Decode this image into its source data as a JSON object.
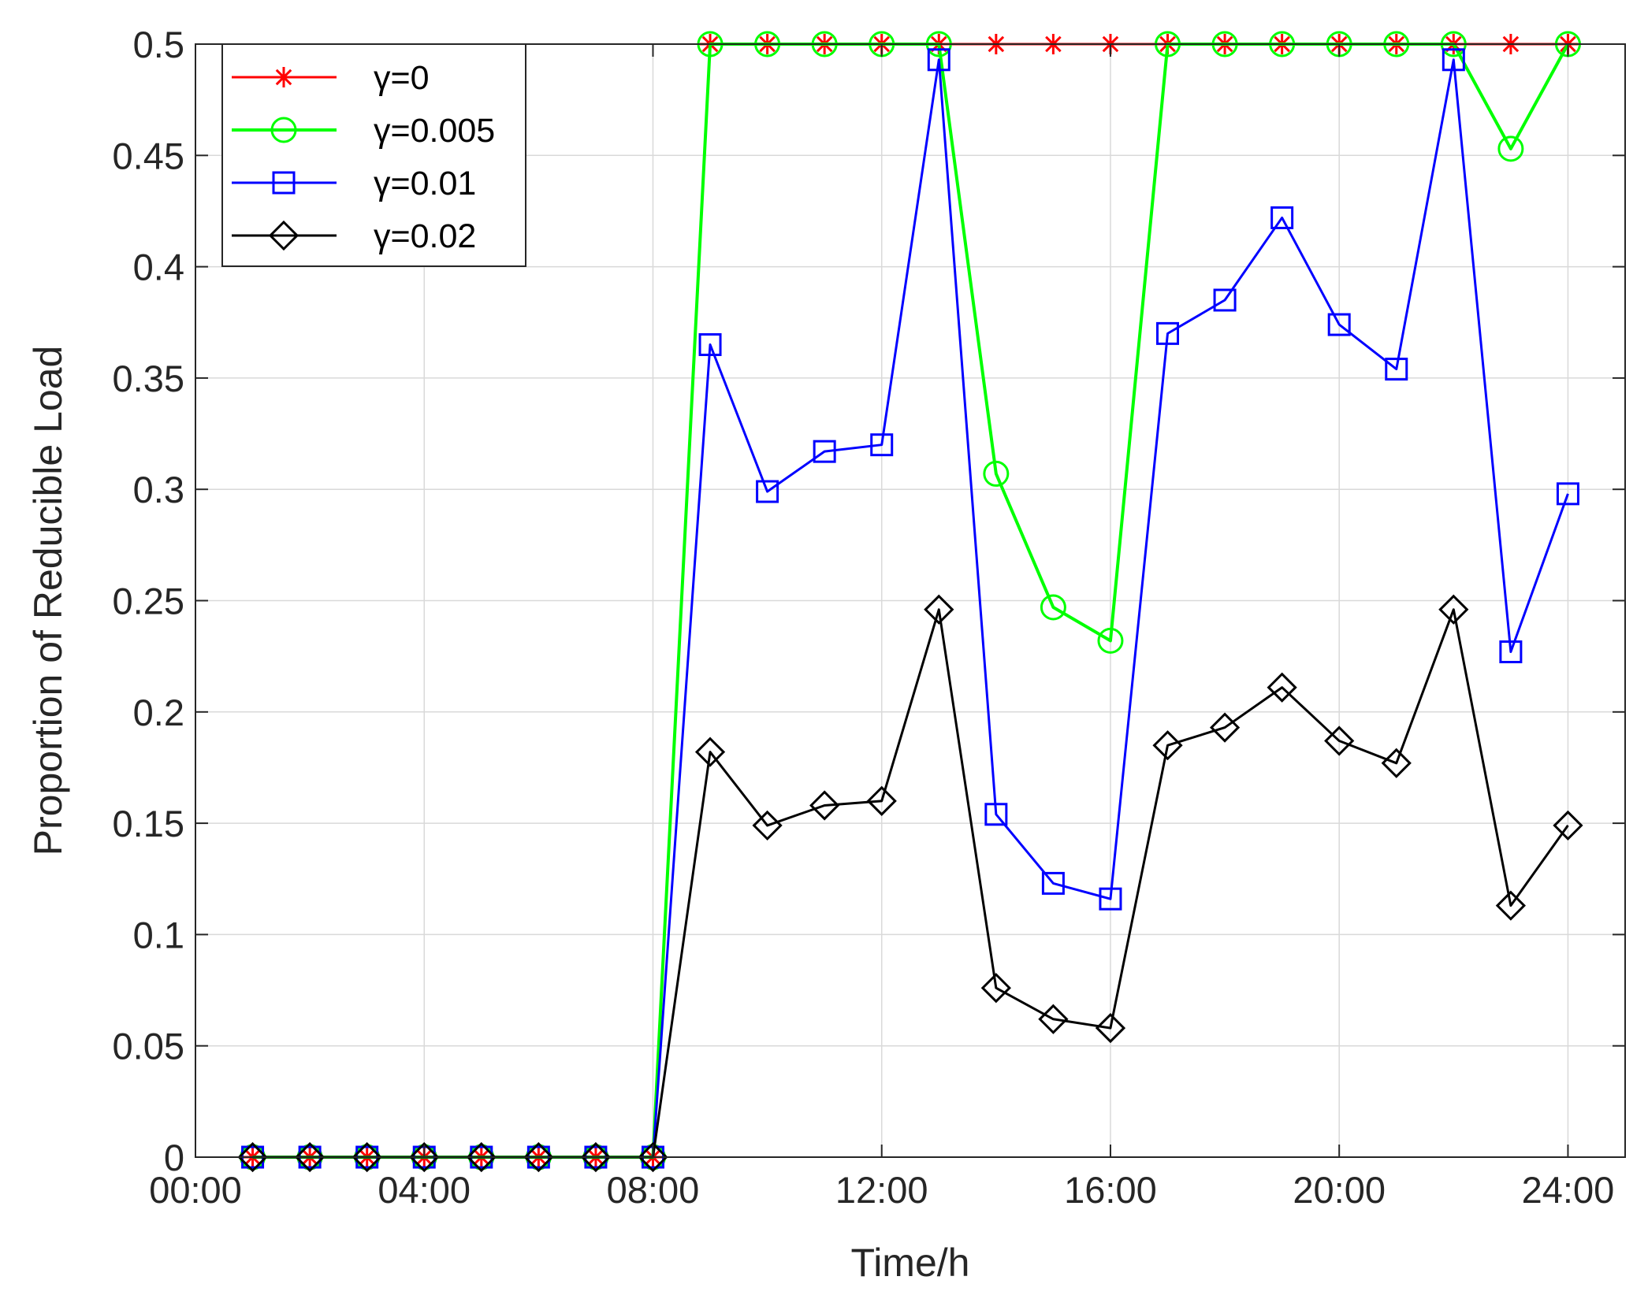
{
  "chart_data": {
    "type": "line",
    "title": "",
    "xlabel": "Time/h",
    "ylabel": "Proportion of Reducible Load",
    "x": [
      1,
      2,
      3,
      4,
      5,
      6,
      7,
      8,
      9,
      10,
      11,
      12,
      13,
      14,
      15,
      16,
      17,
      18,
      19,
      20,
      21,
      22,
      23,
      24
    ],
    "xlim": [
      0,
      25
    ],
    "ylim": [
      0,
      0.5
    ],
    "x_ticks": [
      0,
      4,
      8,
      12,
      16,
      20,
      24
    ],
    "x_tick_labels": [
      "00:00",
      "04:00",
      "08:00",
      "12:00",
      "16:00",
      "20:00",
      "24:00"
    ],
    "y_ticks": [
      0,
      0.05,
      0.1,
      0.15,
      0.2,
      0.25,
      0.3,
      0.35,
      0.4,
      0.45,
      0.5
    ],
    "y_tick_labels": [
      "0",
      "0.05",
      "0.1",
      "0.15",
      "0.2",
      "0.25",
      "0.3",
      "0.35",
      "0.4",
      "0.45",
      "0.5"
    ],
    "grid": true,
    "legend_position": "top-left",
    "series": [
      {
        "name": "γ=0",
        "color": "#ff0000",
        "marker": "asterisk",
        "values": [
          0,
          0,
          0,
          0,
          0,
          0,
          0,
          0,
          0.5,
          0.5,
          0.5,
          0.5,
          0.5,
          0.5,
          0.5,
          0.5,
          0.5,
          0.5,
          0.5,
          0.5,
          0.5,
          0.5,
          0.5,
          0.5
        ]
      },
      {
        "name": "γ=0.005",
        "color": "#00ff00",
        "marker": "circle",
        "values": [
          0,
          0,
          0,
          0,
          0,
          0,
          0,
          0,
          0.5,
          0.5,
          0.5,
          0.5,
          0.5,
          0.307,
          0.247,
          0.232,
          0.5,
          0.5,
          0.5,
          0.5,
          0.5,
          0.5,
          0.453,
          0.5
        ]
      },
      {
        "name": "γ=0.01",
        "color": "#0000ff",
        "marker": "square",
        "values": [
          0,
          0,
          0,
          0,
          0,
          0,
          0,
          0,
          0.365,
          0.299,
          0.317,
          0.32,
          0.493,
          0.154,
          0.123,
          0.116,
          0.37,
          0.385,
          0.422,
          0.374,
          0.354,
          0.493,
          0.227,
          0.298
        ]
      },
      {
        "name": "γ=0.02",
        "color": "#000000",
        "marker": "diamond",
        "values": [
          0,
          0,
          0,
          0,
          0,
          0,
          0,
          0,
          0.182,
          0.149,
          0.158,
          0.16,
          0.246,
          0.076,
          0.062,
          0.058,
          0.185,
          0.193,
          0.211,
          0.187,
          0.177,
          0.246,
          0.113,
          0.149
        ]
      }
    ]
  }
}
